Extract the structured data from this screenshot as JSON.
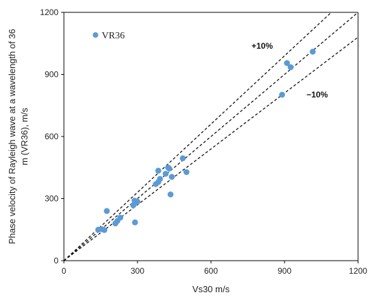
{
  "chart_data": {
    "type": "scatter",
    "xlabel": "Vs30 m/s",
    "ylabel_lines": [
      "Phase velocity of Rayleigh wave at a wavelength of 36",
      "m  (VR36), m/s"
    ],
    "xlim": [
      0,
      1200
    ],
    "ylim": [
      0,
      1200
    ],
    "xticks": [
      0,
      300,
      600,
      900,
      1200
    ],
    "yticks": [
      0,
      300,
      600,
      900,
      1200
    ],
    "grid": false,
    "legend": {
      "position": "top-left",
      "label": "VR36",
      "color": "#5b9bd5"
    },
    "series": [
      {
        "name": "VR36",
        "color": "#5b9bd5",
        "points": [
          [
            140,
            150
          ],
          [
            155,
            152
          ],
          [
            165,
            148
          ],
          [
            175,
            240
          ],
          [
            210,
            180
          ],
          [
            218,
            192
          ],
          [
            230,
            208
          ],
          [
            283,
            268
          ],
          [
            288,
            290
          ],
          [
            290,
            185
          ],
          [
            300,
            285
          ],
          [
            375,
            370
          ],
          [
            385,
            380
          ],
          [
            385,
            435
          ],
          [
            392,
            395
          ],
          [
            415,
            420
          ],
          [
            425,
            450
          ],
          [
            430,
            445
          ],
          [
            435,
            320
          ],
          [
            440,
            405
          ],
          [
            485,
            495
          ],
          [
            500,
            428
          ],
          [
            890,
            802
          ],
          [
            910,
            955
          ],
          [
            925,
            935
          ],
          [
            1015,
            1010
          ]
        ]
      }
    ],
    "reference_lines": [
      {
        "label": "",
        "slope": 1.0
      },
      {
        "label": "+10%",
        "slope": 1.1
      },
      {
        "label": "−10%",
        "slope": 0.9
      }
    ]
  }
}
